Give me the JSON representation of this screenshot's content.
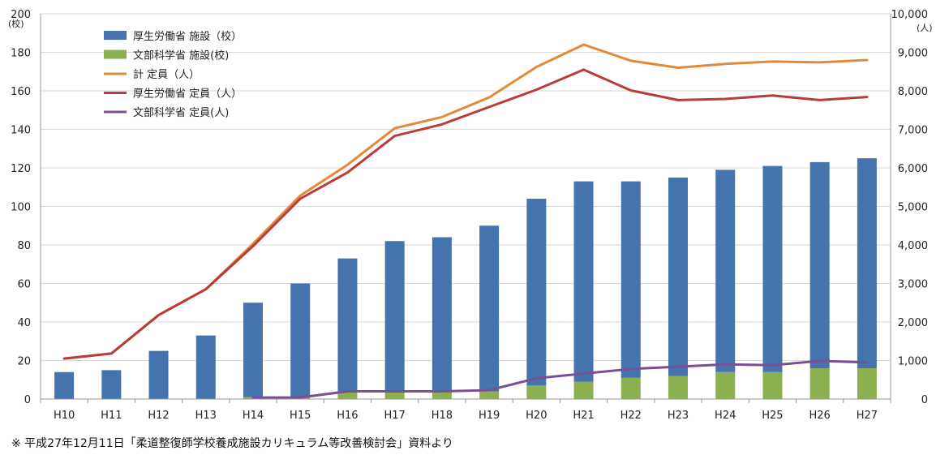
{
  "chart_data": {
    "type": "bar",
    "categories": [
      "H10",
      "H11",
      "H12",
      "H13",
      "H14",
      "H15",
      "H16",
      "H17",
      "H18",
      "H19",
      "H20",
      "H21",
      "H22",
      "H23",
      "H24",
      "H25",
      "H26",
      "H27"
    ],
    "y_left": {
      "unit": "(校)",
      "ylim": [
        0,
        200
      ],
      "ticks": [
        "0",
        "20",
        "40",
        "60",
        "80",
        "100",
        "120",
        "140",
        "160",
        "180",
        "200"
      ]
    },
    "y_right": {
      "unit": "(人)",
      "ylim": [
        0,
        10000
      ],
      "ticks": [
        "0",
        "1,000",
        "2,000",
        "3,000",
        "4,000",
        "5,000",
        "6,000",
        "7,000",
        "8,000",
        "9,000",
        "10,000"
      ]
    },
    "grid": true,
    "legend_position": "top-left",
    "series": [
      {
        "name": "厚生労働省 施設（校）",
        "type": "bar",
        "axis": "left",
        "color": "#4473ae",
        "values": [
          14,
          15,
          25,
          33,
          49,
          59,
          69,
          78,
          80,
          86,
          97,
          104,
          102,
          103,
          105,
          107,
          107,
          109
        ]
      },
      {
        "name": "文部科学省 施設(校)",
        "type": "bar",
        "axis": "left",
        "color": "#8cb050",
        "values": [
          0,
          0,
          0,
          0,
          1,
          1,
          4,
          4,
          4,
          4,
          7,
          9,
          11,
          12,
          14,
          14,
          16,
          16
        ]
      },
      {
        "name": "計 定員（人）",
        "type": "line",
        "axis": "right",
        "color": "#e28a3c",
        "values": [
          1050,
          1180,
          2180,
          2850,
          4030,
          5280,
          6080,
          7030,
          7320,
          7830,
          8620,
          9200,
          8780,
          8600,
          8700,
          8760,
          8740,
          8800
        ]
      },
      {
        "name": "厚生労働省 定員（人）",
        "type": "line",
        "axis": "right",
        "color": "#b83c3a",
        "values": [
          1050,
          1180,
          2180,
          2850,
          3970,
          5200,
          5880,
          6830,
          7130,
          7580,
          8030,
          8550,
          8010,
          7760,
          7790,
          7880,
          7760,
          7840
        ]
      },
      {
        "name": "文部科学省 定員(人)",
        "type": "line",
        "axis": "right",
        "color": "#7b4f96",
        "values": [
          null,
          null,
          null,
          null,
          40,
          40,
          200,
          200,
          200,
          230,
          540,
          660,
          780,
          840,
          900,
          880,
          990,
          950
        ]
      }
    ]
  },
  "footnote": "※ 平成27年12月11日「柔道整復師学校養成施設カリキュラム等改善検討会」資料より"
}
